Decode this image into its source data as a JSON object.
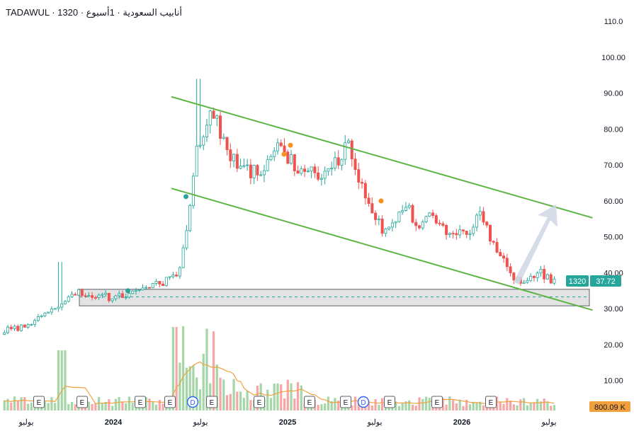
{
  "header": {
    "title": "TADAWUL · 1320 · أنابيب السعودية · 1أسبوع"
  },
  "colors": {
    "up": "#26a69a",
    "down": "#ef5350",
    "up_fill": "#ffffff",
    "channel": "#5cb545",
    "volume_up": "#a5d6a7",
    "volume_down": "#f7a5a5",
    "volume_ma": "#f2a03d",
    "support_band": "#e3e3e3",
    "support_border": "#5d606b",
    "support_dash": "#26a69a",
    "arrow": "#cfd6e4",
    "marker_orange": "#f7931a",
    "marker_green": "#26a69a",
    "axis_text": "#131722",
    "earnings_border": "#5d606b",
    "dividend": "#2962ff"
  },
  "chart_data": {
    "type": "candlestick",
    "y_axis": {
      "min": 6,
      "max": 112,
      "ticks": [
        "10.00",
        "20.00",
        "30.00",
        "40.00",
        "50.00",
        "60.00",
        "70.00",
        "80.00",
        "90.00",
        "100.00",
        "110.0"
      ]
    },
    "x_axis": {
      "tick_labels": [
        {
          "label": "يوليو",
          "date": "2023-07"
        },
        {
          "label": "2024",
          "date": "2024-01"
        },
        {
          "label": "يوليو",
          "date": "2024-07"
        },
        {
          "label": "2025",
          "date": "2025-01"
        },
        {
          "label": "يوليو",
          "date": "2025-07"
        },
        {
          "label": "2026",
          "date": "2026-01"
        },
        {
          "label": "يوليو",
          "date": "2026-07"
        }
      ]
    },
    "price_badge": {
      "symbol": "1320",
      "price": "37.72"
    },
    "volume_badge": "800.09 K",
    "key_levels": {
      "early_2023": 25,
      "peak_2024": 94,
      "current": 37.72,
      "support_zone": [
        30.8,
        35.4
      ],
      "support_dashed": 33.3
    },
    "channel": {
      "upper": [
        {
          "date": "2024-05",
          "price": 89
        },
        {
          "date": "2026-10",
          "price": 55.3
        }
      ],
      "lower": [
        {
          "date": "2024-05",
          "price": 63.5
        },
        {
          "date": "2026-10",
          "price": 29.6
        }
      ]
    },
    "projection_arrow": {
      "from": 37.5,
      "to": 59
    },
    "earnings_markers": [
      "E",
      "E",
      "E",
      "E",
      "D",
      "E",
      "E",
      "E",
      "E",
      "D",
      "E",
      "E",
      "E"
    ],
    "events": [
      {
        "date": "2025-01",
        "price": 73
      },
      {
        "date": "2025-01",
        "price": 75.5
      },
      {
        "date": "2025-07",
        "price": 60
      },
      {
        "date": "2024-06",
        "price": 61.2
      },
      {
        "date": "2024-02",
        "price": 35
      }
    ]
  }
}
